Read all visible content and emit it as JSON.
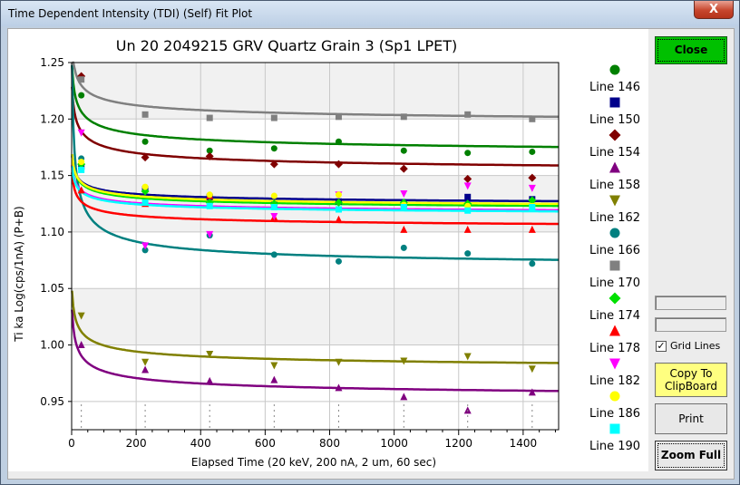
{
  "window": {
    "title": "Time Dependent Intensity (TDI) (Self) Fit Plot",
    "close_glyph": "X"
  },
  "buttons": {
    "close": "Close",
    "copy_line1": "Copy To",
    "copy_line2": "ClipBoard",
    "print": "Print",
    "zoom": "Zoom Full"
  },
  "grid_lines": {
    "label": "Grid Lines",
    "checked": true,
    "check_glyph": "✓"
  },
  "chart_data": {
    "type": "scatter",
    "title": "Un   20  2049215 GRV Quartz Grain 3 (Sp1 LPET)",
    "xlabel": "Elapsed Time (20 keV, 200 nA, 2 um, 60 sec)",
    "ylabel": "Ti ka Log(cps/1nA) (P+B)",
    "xlim": [
      0,
      1510
    ],
    "ylim": [
      0.925,
      1.25
    ],
    "x_ticks": [
      0,
      200,
      400,
      600,
      800,
      1000,
      1200,
      1400
    ],
    "y_ticks": [
      0.95,
      1.0,
      1.05,
      1.1,
      1.15,
      1.2,
      1.25
    ],
    "y_tick_labels": [
      "0.95",
      "1.00",
      "1.05",
      "1.10",
      "1.15",
      "1.20",
      "1.25"
    ],
    "grid": true,
    "legend_position": "right",
    "series": [
      {
        "name": "Line 146",
        "color": "#008000",
        "marker": "circle",
        "x": [
          30,
          228,
          428,
          628,
          828,
          1030,
          1228,
          1428
        ],
        "y": [
          1.221,
          1.18,
          1.172,
          1.174,
          1.18,
          1.172,
          1.17,
          1.171
        ],
        "fit": {
          "a": 1.164,
          "b": 0.09,
          "t0": 4,
          "p": 0.35
        }
      },
      {
        "name": "Line 150",
        "color": "#00008b",
        "marker": "square",
        "x": [
          30,
          228,
          428,
          628,
          828,
          1030,
          1228,
          1428
        ],
        "y": [
          1.158,
          1.138,
          1.131,
          1.124,
          1.127,
          1.125,
          1.131,
          1.129
        ],
        "fit": {
          "a": 1.121,
          "b": 0.05,
          "t0": 4,
          "p": 0.35
        }
      },
      {
        "name": "Line 154",
        "color": "#800000",
        "marker": "diamond",
        "x": [
          30,
          228,
          428,
          628,
          828,
          1030,
          1228,
          1428
        ],
        "y": [
          1.238,
          1.166,
          1.167,
          1.16,
          1.16,
          1.156,
          1.147,
          1.148
        ],
        "fit": {
          "a": 1.148,
          "b": 0.087,
          "t0": 4,
          "p": 0.35
        }
      },
      {
        "name": "Line 158",
        "color": "#800080",
        "marker": "triangle-up",
        "x": [
          30,
          228,
          428,
          628,
          828,
          1030,
          1228,
          1428
        ],
        "y": [
          1.0,
          0.978,
          0.968,
          0.969,
          0.962,
          0.954,
          0.942,
          0.958
        ],
        "fit": {
          "a": 0.948,
          "b": 0.09,
          "t0": 4,
          "p": 0.35
        }
      },
      {
        "name": "Line 162",
        "color": "#808000",
        "marker": "triangle-down",
        "x": [
          30,
          228,
          428,
          628,
          828,
          1030,
          1228,
          1428
        ],
        "y": [
          1.026,
          0.985,
          0.992,
          0.982,
          0.985,
          0.986,
          0.99,
          0.979
        ],
        "fit": {
          "a": 0.974,
          "b": 0.08,
          "t0": 4,
          "p": 0.35
        }
      },
      {
        "name": "Line 166",
        "color": "#008080",
        "marker": "circle",
        "x": [
          30,
          228,
          428,
          628,
          828,
          1030,
          1228,
          1428
        ],
        "y": [
          1.165,
          1.084,
          1.097,
          1.08,
          1.074,
          1.086,
          1.081,
          1.072
        ],
        "fit": {
          "a": 1.066,
          "b": 0.21,
          "t0": 3,
          "p": 0.5
        }
      },
      {
        "name": "Line 170",
        "color": "#808080",
        "marker": "square",
        "x": [
          30,
          228,
          428,
          628,
          828,
          1030,
          1228,
          1428
        ],
        "y": [
          1.235,
          1.204,
          1.201,
          1.201,
          1.202,
          1.202,
          1.204,
          1.2
        ],
        "fit": {
          "a": 1.192,
          "b": 0.08,
          "t0": 4,
          "p": 0.35
        }
      },
      {
        "name": "Line 174",
        "color": "#00e000",
        "marker": "diamond",
        "x": [
          30,
          228,
          428,
          628,
          828,
          1030,
          1228,
          1428
        ],
        "y": [
          1.16,
          1.136,
          1.126,
          1.125,
          1.126,
          1.126,
          1.125,
          1.128
        ],
        "fit": {
          "a": 1.116,
          "b": 0.057,
          "t0": 4,
          "p": 0.35
        }
      },
      {
        "name": "Line 178",
        "color": "#ff0000",
        "marker": "triangle-up",
        "x": [
          30,
          228,
          428,
          628,
          828,
          1030,
          1228,
          1428
        ],
        "y": [
          1.137,
          1.125,
          1.132,
          1.113,
          1.111,
          1.102,
          1.102,
          1.102
        ],
        "fit": {
          "a": 1.1,
          "b": 0.057,
          "t0": 4,
          "p": 0.35
        }
      },
      {
        "name": "Line 182",
        "color": "#ff00ff",
        "marker": "triangle-down",
        "x": [
          30,
          228,
          428,
          628,
          828,
          1030,
          1228,
          1428
        ],
        "y": [
          1.188,
          1.088,
          1.098,
          1.114,
          1.133,
          1.134,
          1.141,
          1.139
        ],
        "fit": {
          "a": 1.113,
          "b": 0.05,
          "t0": 4,
          "p": 0.35
        }
      },
      {
        "name": "Line 186",
        "color": "#ffff00",
        "marker": "circle",
        "x": [
          30,
          228,
          428,
          628,
          828,
          1030,
          1228,
          1428
        ],
        "y": [
          1.162,
          1.14,
          1.133,
          1.132,
          1.133,
          1.124,
          1.123,
          1.123
        ],
        "fit": {
          "a": 1.118,
          "b": 0.055,
          "t0": 4,
          "p": 0.35
        }
      },
      {
        "name": "Line 190",
        "color": "#00ffff",
        "marker": "square",
        "x": [
          30,
          228,
          428,
          628,
          828,
          1030,
          1228,
          1428
        ],
        "y": [
          1.155,
          1.126,
          1.123,
          1.122,
          1.12,
          1.122,
          1.119,
          1.122
        ],
        "fit": {
          "a": 1.112,
          "b": 0.05,
          "t0": 4,
          "p": 0.35
        }
      }
    ]
  }
}
